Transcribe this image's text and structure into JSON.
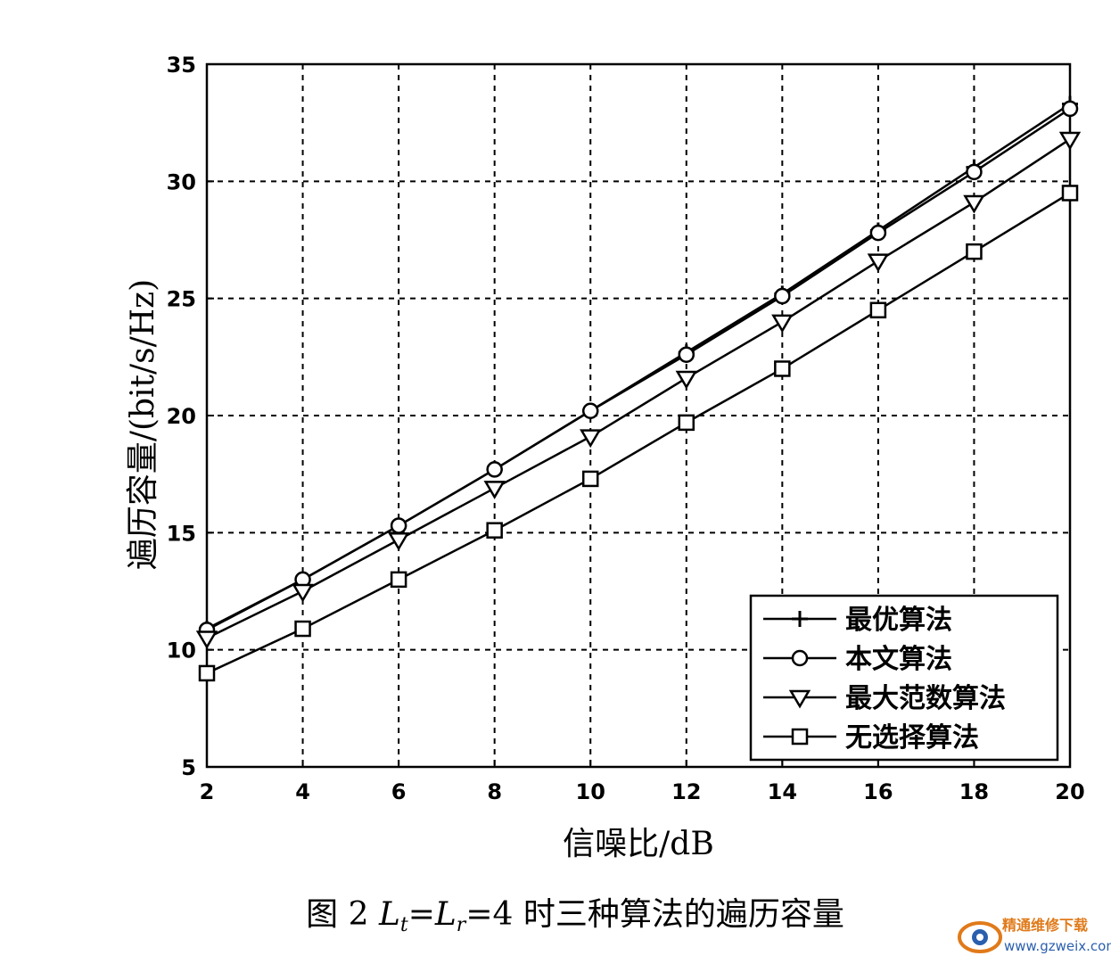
{
  "chart_data": {
    "type": "line",
    "title": "",
    "xlabel": "信噪比/dB",
    "ylabel": "遍历容量/(bit/s/Hz)",
    "xlim": [
      2,
      20
    ],
    "ylim": [
      5,
      35
    ],
    "xticks": [
      2,
      4,
      6,
      8,
      10,
      12,
      14,
      16,
      18,
      20
    ],
    "yticks": [
      5,
      10,
      15,
      20,
      25,
      30,
      35
    ],
    "grid": true,
    "legend_position": "bottom-right",
    "x": [
      2,
      4,
      6,
      8,
      10,
      12,
      14,
      16,
      18,
      20
    ],
    "series": [
      {
        "name": "最优算法",
        "marker": "plus",
        "values": [
          10.9,
          13.0,
          15.3,
          17.7,
          20.2,
          22.7,
          25.2,
          27.9,
          30.6,
          33.3
        ]
      },
      {
        "name": "本文算法",
        "marker": "circle",
        "values": [
          10.85,
          13.0,
          15.3,
          17.7,
          20.2,
          22.6,
          25.1,
          27.8,
          30.4,
          33.1
        ]
      },
      {
        "name": "最大范数算法",
        "marker": "triangle-down",
        "values": [
          10.5,
          12.5,
          14.7,
          16.9,
          19.1,
          21.6,
          24.0,
          26.6,
          29.1,
          31.8
        ]
      },
      {
        "name": "无选择算法",
        "marker": "square",
        "values": [
          9.0,
          10.9,
          13.0,
          15.1,
          17.3,
          19.7,
          22.0,
          24.5,
          27.0,
          29.5
        ]
      }
    ]
  },
  "caption": {
    "prefix": "图 2 ",
    "l1": "L",
    "sub1": "t",
    "eq": "=",
    "l2": "L",
    "sub2": "r",
    "suffix": "=4 时三种算法的遍历容量"
  },
  "watermark": {
    "name": "精通维修下载",
    "url": "www.gzweix.com",
    "colors": {
      "orange": "#e07a1a",
      "blue": "#2a5fae"
    }
  }
}
